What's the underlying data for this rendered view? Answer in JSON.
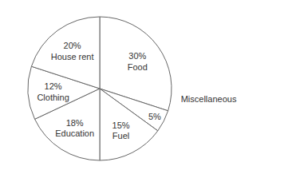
{
  "chart_data": {
    "type": "pie",
    "categories": [
      "Food",
      "Miscellaneous",
      "Fuel",
      "Education",
      "Clothing",
      "House rent"
    ],
    "values": [
      30,
      5,
      15,
      18,
      12,
      20
    ],
    "value_labels": [
      "30%",
      "5%",
      "15%",
      "18%",
      "12%",
      "20%"
    ],
    "colors": [
      "white",
      "white",
      "white",
      "white",
      "white",
      "white"
    ],
    "data_labels": true
  }
}
